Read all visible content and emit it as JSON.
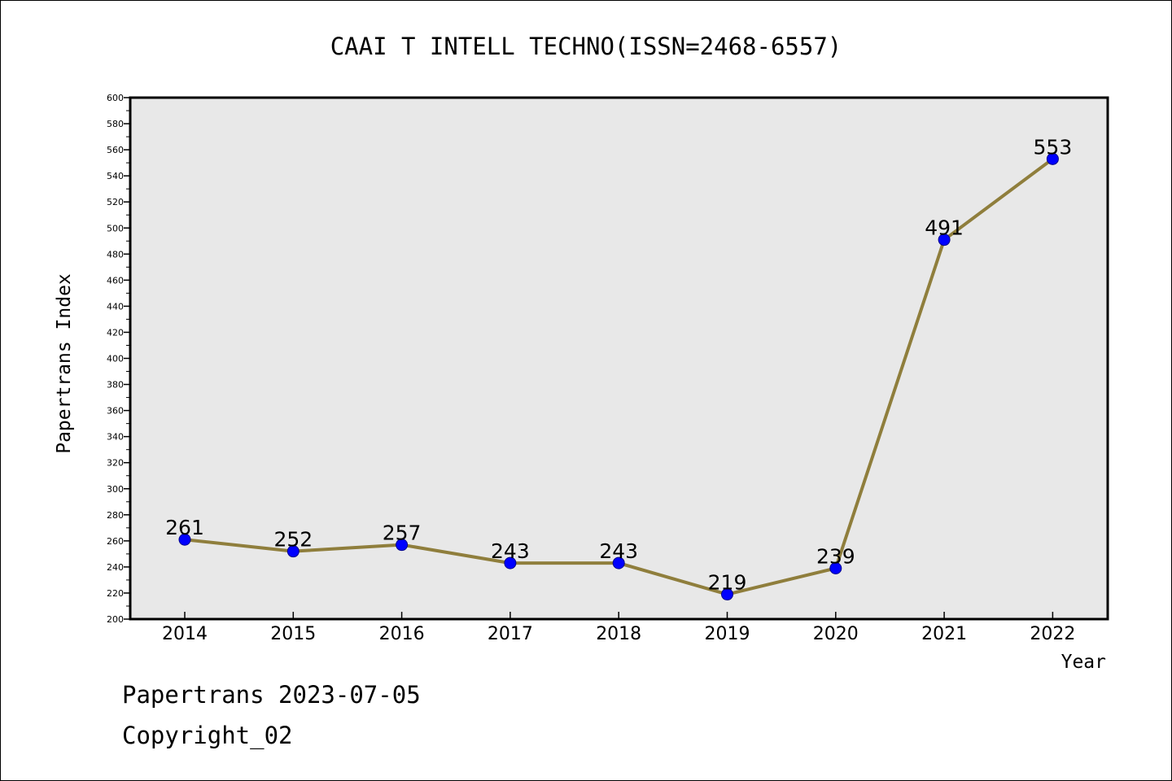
{
  "chart_data": {
    "type": "line",
    "title": "CAAI T INTELL TECHNO(ISSN=2468-6557)",
    "xlabel": "Year",
    "ylabel": "Papertrans Index",
    "x": [
      "2014",
      "2015",
      "2016",
      "2017",
      "2018",
      "2019",
      "2020",
      "2021",
      "2022"
    ],
    "values": [
      261,
      252,
      257,
      243,
      243,
      219,
      239,
      491,
      553
    ],
    "data_labels": [
      "261",
      "252",
      "257",
      "243",
      "243",
      "219",
      "239",
      "491",
      "553"
    ],
    "ylim": [
      200,
      600
    ],
    "yticks": [
      "200",
      "220",
      "240",
      "260",
      "280",
      "300",
      "320",
      "340",
      "360",
      "380",
      "400",
      "420",
      "440",
      "460",
      "480",
      "500",
      "520",
      "540",
      "560",
      "580",
      "600"
    ],
    "grid": false,
    "line_color": "#8f7e3c",
    "marker_color": "#0000ff",
    "plot_background": "#e8e8e8"
  },
  "footer": {
    "line1": "Papertrans 2023-07-05",
    "line2": "Copyright_02"
  }
}
